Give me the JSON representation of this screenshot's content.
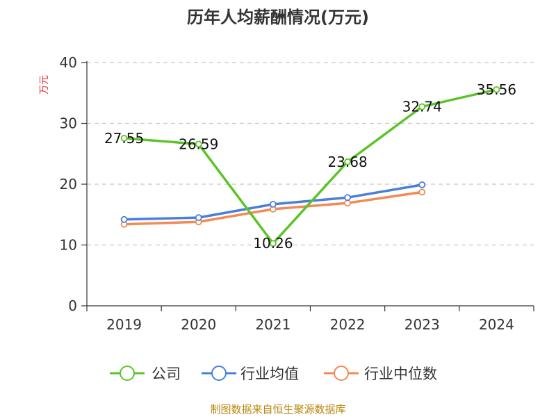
{
  "chart_data": {
    "type": "line",
    "title": "历年人均薪酬情况(万元)",
    "ylabel": "万元",
    "xlabel": "",
    "categories": [
      "2019",
      "2020",
      "2021",
      "2022",
      "2023",
      "2024"
    ],
    "ylim": [
      0,
      40
    ],
    "yticks": [
      0,
      10,
      20,
      30,
      40
    ],
    "grid": true,
    "legend_position": "bottom",
    "series": [
      {
        "name": "公司",
        "color": "#5cc42a",
        "values": [
          27.55,
          26.59,
          10.26,
          23.68,
          32.74,
          35.56
        ],
        "labels": [
          "27.55",
          "26.59",
          "10.26",
          "23.68",
          "32.74",
          "35.56"
        ]
      },
      {
        "name": "行业均值",
        "color": "#4a7fd9",
        "values": [
          14.2,
          14.5,
          16.7,
          17.8,
          19.9,
          null
        ]
      },
      {
        "name": "行业中位数",
        "color": "#f28a55",
        "values": [
          13.4,
          13.8,
          15.9,
          16.9,
          18.7,
          null
        ]
      }
    ]
  },
  "footer": {
    "source": "制图数据来自恒生聚源数据库"
  }
}
